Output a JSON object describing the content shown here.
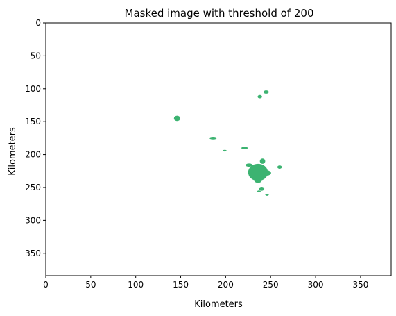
{
  "chart_data": {
    "type": "image",
    "title": "Masked image with threshold of 200",
    "xlabel": "Kilometers",
    "ylabel": "Kilometers",
    "xlim": [
      0,
      384
    ],
    "ylim": [
      384,
      0
    ],
    "y_inverted": true,
    "x_ticks": [
      0,
      50,
      100,
      150,
      200,
      250,
      300,
      350
    ],
    "y_ticks": [
      0,
      50,
      100,
      150,
      200,
      250,
      300,
      350
    ],
    "grid": false,
    "mask_color": "#3cb371",
    "regions": [
      {
        "cx": 146,
        "cy": 145,
        "rx": 3.5,
        "ry": 4
      },
      {
        "cx": 238,
        "cy": 112,
        "rx": 2.5,
        "ry": 2.5
      },
      {
        "cx": 245,
        "cy": 105,
        "rx": 3,
        "ry": 2.5
      },
      {
        "cx": 186,
        "cy": 175,
        "rx": 4,
        "ry": 2
      },
      {
        "cx": 199,
        "cy": 194,
        "rx": 2,
        "ry": 1.2
      },
      {
        "cx": 221,
        "cy": 190,
        "rx": 3.5,
        "ry": 2
      },
      {
        "cx": 241,
        "cy": 210,
        "rx": 3,
        "ry": 4
      },
      {
        "cx": 236,
        "cy": 227,
        "rx": 11,
        "ry": 13
      },
      {
        "cx": 226,
        "cy": 216,
        "rx": 4,
        "ry": 2.5
      },
      {
        "cx": 246,
        "cy": 228,
        "rx": 4.5,
        "ry": 4
      },
      {
        "cx": 236,
        "cy": 240,
        "rx": 4,
        "ry": 3
      },
      {
        "cx": 260,
        "cy": 219,
        "rx": 2.5,
        "ry": 2.5
      },
      {
        "cx": 240,
        "cy": 252,
        "rx": 3,
        "ry": 3
      },
      {
        "cx": 237,
        "cy": 256,
        "rx": 2,
        "ry": 1.5
      },
      {
        "cx": 246,
        "cy": 261,
        "rx": 2,
        "ry": 1.5
      }
    ]
  }
}
